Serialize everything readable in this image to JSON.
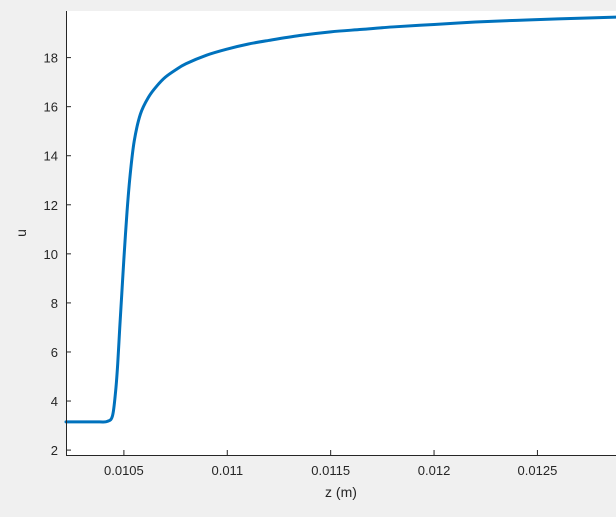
{
  "chart_data": {
    "type": "line",
    "title": "",
    "xlabel": "z (m)",
    "ylabel": "u",
    "xlim": [
      0.01022,
      0.01288
    ],
    "ylim": [
      1.8,
      19.9
    ],
    "xticks": [
      0.0105,
      0.011,
      0.0115,
      0.012,
      0.0125
    ],
    "xtick_labels": [
      "0.0105",
      "0.011",
      "0.0115",
      "0.012",
      "0.0125"
    ],
    "yticks": [
      2,
      4,
      6,
      8,
      10,
      12,
      14,
      16,
      18
    ],
    "ytick_labels": [
      "2",
      "4",
      "6",
      "8",
      "10",
      "12",
      "14",
      "16",
      "18"
    ],
    "grid": false,
    "legend": "none",
    "series": [
      {
        "color": "#0072BD",
        "x": [
          0.01022,
          0.0103,
          0.01038,
          0.01042,
          0.010445,
          0.01046,
          0.01047,
          0.01048,
          0.01049,
          0.0105,
          0.010515,
          0.01053,
          0.01055,
          0.01058,
          0.01062,
          0.01066,
          0.0107,
          0.01075,
          0.0108,
          0.0109,
          0.011,
          0.0111,
          0.0112,
          0.01135,
          0.0115,
          0.01165,
          0.0118,
          0.012,
          0.0122,
          0.0124,
          0.0126,
          0.01288
        ],
        "y": [
          3.15,
          3.15,
          3.15,
          3.17,
          3.4,
          4.4,
          5.5,
          7.0,
          8.4,
          9.8,
          11.7,
          13.2,
          14.6,
          15.7,
          16.4,
          16.85,
          17.2,
          17.5,
          17.75,
          18.1,
          18.35,
          18.55,
          18.7,
          18.9,
          19.05,
          19.15,
          19.25,
          19.35,
          19.45,
          19.52,
          19.58,
          19.65
        ]
      }
    ]
  }
}
